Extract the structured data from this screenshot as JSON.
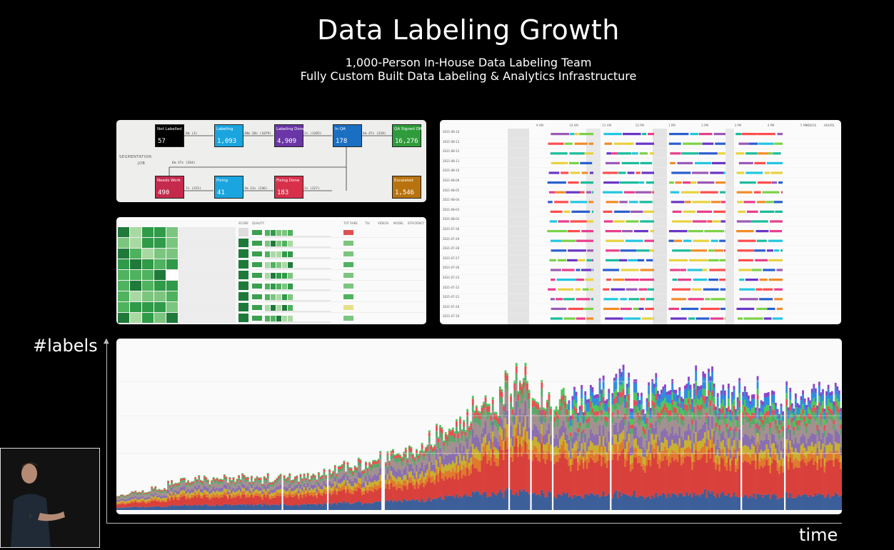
{
  "slide": {
    "title": "Data Labeling Growth",
    "subtitle_1": "1,000-Person In-House Data Labeling Team",
    "subtitle_2": "Fully Custom Built Data Labeling & Analytics Infrastructure"
  },
  "pipeline": {
    "side_label_1": "SEGMENTATION",
    "side_label_2": "JOB",
    "nodes": [
      {
        "label": "Not Labelled",
        "value": "57",
        "color": "#000000"
      },
      {
        "label": "Labeling",
        "value": "1,093",
        "color": "#1aa5df"
      },
      {
        "label": "Labeling Done",
        "value": "4,909",
        "color": "#6a35a6"
      },
      {
        "label": "In QA",
        "value": "178",
        "color": "#1b6fc2"
      },
      {
        "label": "QA Signed Off",
        "value": "16,276",
        "color": "#2e9c3a"
      },
      {
        "label": "Needs Work",
        "value": "490",
        "color": "#c52a4d"
      },
      {
        "label": "Fixing",
        "value": "41",
        "color": "#1aa5df"
      },
      {
        "label": "Fixing Done",
        "value": "183",
        "color": "#d8304a"
      },
      {
        "label": "Escalated",
        "value": "1,546",
        "color": "#b8730f"
      }
    ],
    "edges": [
      "8m (3)",
      "48m 20s (1079)",
      "2s (1205)",
      "4m 47s (338)",
      "6m 47s (264)",
      "7s (225)",
      "3m 13s (246)",
      "2s (227)"
    ]
  },
  "scoreboard": {
    "headers": [
      "SCORE",
      "QUALITY",
      "TOT RAKE",
      "TLV",
      "VIDEOS",
      "MODEL",
      "EFFICIENCY"
    ]
  },
  "timeline": {
    "hours": [
      "9 AM",
      "10 AM",
      "11 AM",
      "12 PM",
      "1 PM",
      "2 PM",
      "3 PM",
      "4 PM",
      "5 PM"
    ],
    "right_headers": [
      "VIDEOS",
      "HOURS"
    ],
    "dates": [
      "2021-08-14",
      "2021-08-13",
      "2021-08-12",
      "2021-08-11",
      "2021-08-10",
      "2021-08-06",
      "2021-08-05",
      "2021-08-04",
      "2021-08-03",
      "2021-08-02",
      "2021-07-30",
      "2021-07-29",
      "2021-07-28",
      "2021-07-27",
      "2021-07-26",
      "2021-07-23",
      "2021-07-22",
      "2021-07-21",
      "2021-07-20",
      "2021-07-16"
    ]
  },
  "axes": {
    "y_label": "#labels",
    "x_label": "time"
  },
  "colors": {
    "background": "#000000",
    "stack": [
      "#3c5f9a",
      "#d9403c",
      "#e07a2c",
      "#c8b030",
      "#8a6fb0",
      "#a39090",
      "#5aa86a",
      "#e55252",
      "#4dc85c",
      "#2f8de0",
      "#8c45c8"
    ]
  }
}
